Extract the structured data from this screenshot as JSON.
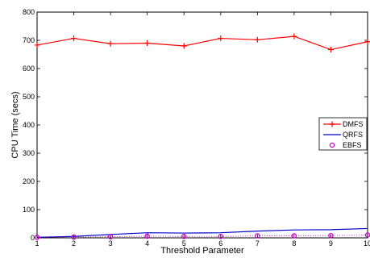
{
  "chart_data": {
    "type": "line",
    "xlabel": "Threshold Parameter",
    "ylabel": "CPU Time (secs)",
    "xlim": [
      1,
      10
    ],
    "ylim": [
      0,
      800
    ],
    "xticks": [
      1,
      2,
      3,
      4,
      5,
      6,
      7,
      8,
      9,
      10
    ],
    "yticks": [
      0,
      100,
      200,
      300,
      400,
      500,
      600,
      700,
      800
    ],
    "grid": false,
    "legend_position": "right",
    "series": [
      {
        "name": "DMFS",
        "color": "#ff0000",
        "marker": "plus",
        "line": "solid",
        "x": [
          1,
          2,
          3,
          4,
          5,
          6,
          7,
          8,
          9,
          10
        ],
        "y": [
          683,
          707,
          688,
          690,
          680,
          707,
          702,
          714,
          667,
          695
        ]
      },
      {
        "name": "QRFS",
        "color": "#0000cc",
        "marker": "none",
        "line": "solid",
        "x": [
          1,
          2,
          3,
          4,
          5,
          6,
          7,
          8,
          9,
          10
        ],
        "y": [
          2,
          5,
          12,
          18,
          17,
          18,
          24,
          28,
          29,
          33
        ]
      },
      {
        "name": "EBFS",
        "color": "#cc00cc",
        "marker": "circle",
        "line": "dotted",
        "x": [
          1,
          2,
          3,
          4,
          5,
          6,
          7,
          8,
          9,
          10
        ],
        "y": [
          2,
          3,
          4,
          6,
          5,
          5,
          7,
          7,
          8,
          10
        ]
      }
    ]
  }
}
